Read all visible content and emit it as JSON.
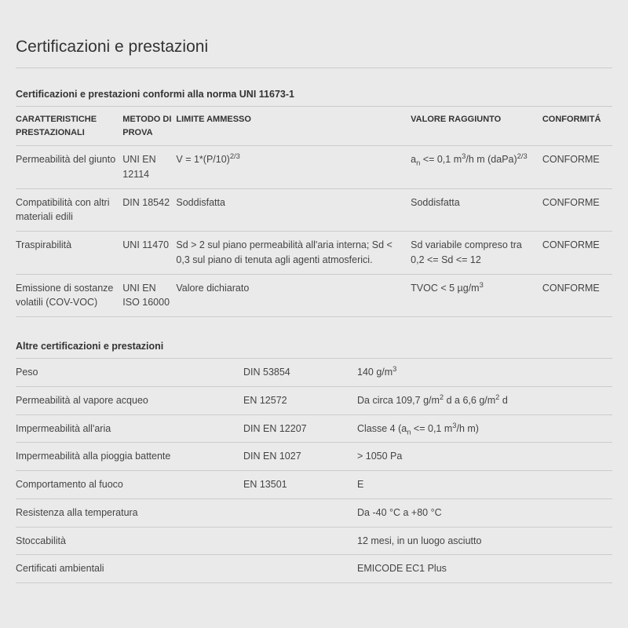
{
  "page": {
    "title": "Certificazioni e prestazioni"
  },
  "table1": {
    "section_title": "Certificazioni e prestazioni conformi alla norma UNI 11673-1",
    "headers": {
      "c1": "CARATTERISTICHE PRESTAZIONALI",
      "c2": "METODO DI PROVA",
      "c3": "LIMITE AMMESSO",
      "c4": "VALORE RAGGIUNTO",
      "c5": "CONFORMITÁ"
    },
    "rows": [
      {
        "c1": "Permeabilità del giunto",
        "c2": "UNI EN 12114",
        "c3_html": "V = 1*(P/10)<sup>2/3</sup>",
        "c4_html": "a<sub>n</sub> <= 0,1 m<sup>3</sup>/h m (daPa)<sup>2/3</sup>",
        "c5": "CONFORME"
      },
      {
        "c1": "Compatibilità con altri materiali edili",
        "c2": "DIN 18542",
        "c3_html": "Soddisfatta",
        "c4_html": "Soddisfatta",
        "c5": "CONFORME"
      },
      {
        "c1": "Traspirabilità",
        "c2": "UNI 11470",
        "c3_html": "Sd > 2 sul piano permeabilità all'aria interna; Sd < 0,3 sul piano di tenuta agli agenti atmosferici.",
        "c4_html": "Sd variabile compreso tra 0,2 <= Sd <= 12",
        "c5": "CONFORME"
      },
      {
        "c1": "Emissione di sostanze volatili (COV-VOC)",
        "c2": "UNI EN ISO 16000",
        "c3_html": "Valore dichiarato",
        "c4_html": "TVOC < 5 µg/m<sup>3</sup>",
        "c5": "CONFORME"
      }
    ]
  },
  "table2": {
    "section_title": "Altre certificazioni e prestazioni",
    "rows": [
      {
        "c1": "Peso",
        "c2": "DIN 53854",
        "c3_html": "140 g/m<sup>3</sup>"
      },
      {
        "c1": "Permeabilità al vapore acqueo",
        "c2": "EN 12572",
        "c3_html": "Da circa 109,7 g/m<sup>2</sup> d a 6,6 g/m<sup>2</sup> d"
      },
      {
        "c1": "Impermeabilità all'aria",
        "c2": "DIN EN 12207",
        "c3_html": "Classe 4 (a<sub>n</sub> <= 0,1 m<sup>3</sup>/h m)"
      },
      {
        "c1": "Impermeabilità alla pioggia battente",
        "c2": "DIN EN 1027",
        "c3_html": "> 1050 Pa"
      },
      {
        "c1": "Comportamento al fuoco",
        "c2": "EN 13501",
        "c3_html": "E"
      },
      {
        "c1": "Resistenza alla temperatura",
        "c2": "",
        "c3_html": "Da -40 °C a +80 °C"
      },
      {
        "c1": "Stoccabilità",
        "c2": "",
        "c3_html": "12 mesi, in un luogo asciutto"
      },
      {
        "c1": "Certificati ambientali",
        "c2": "",
        "c3_html": "EMICODE EC1 Plus"
      }
    ]
  },
  "colors": {
    "background": "#eaeaea",
    "text": "#444444",
    "heading": "#333333",
    "border": "#cccccc"
  }
}
